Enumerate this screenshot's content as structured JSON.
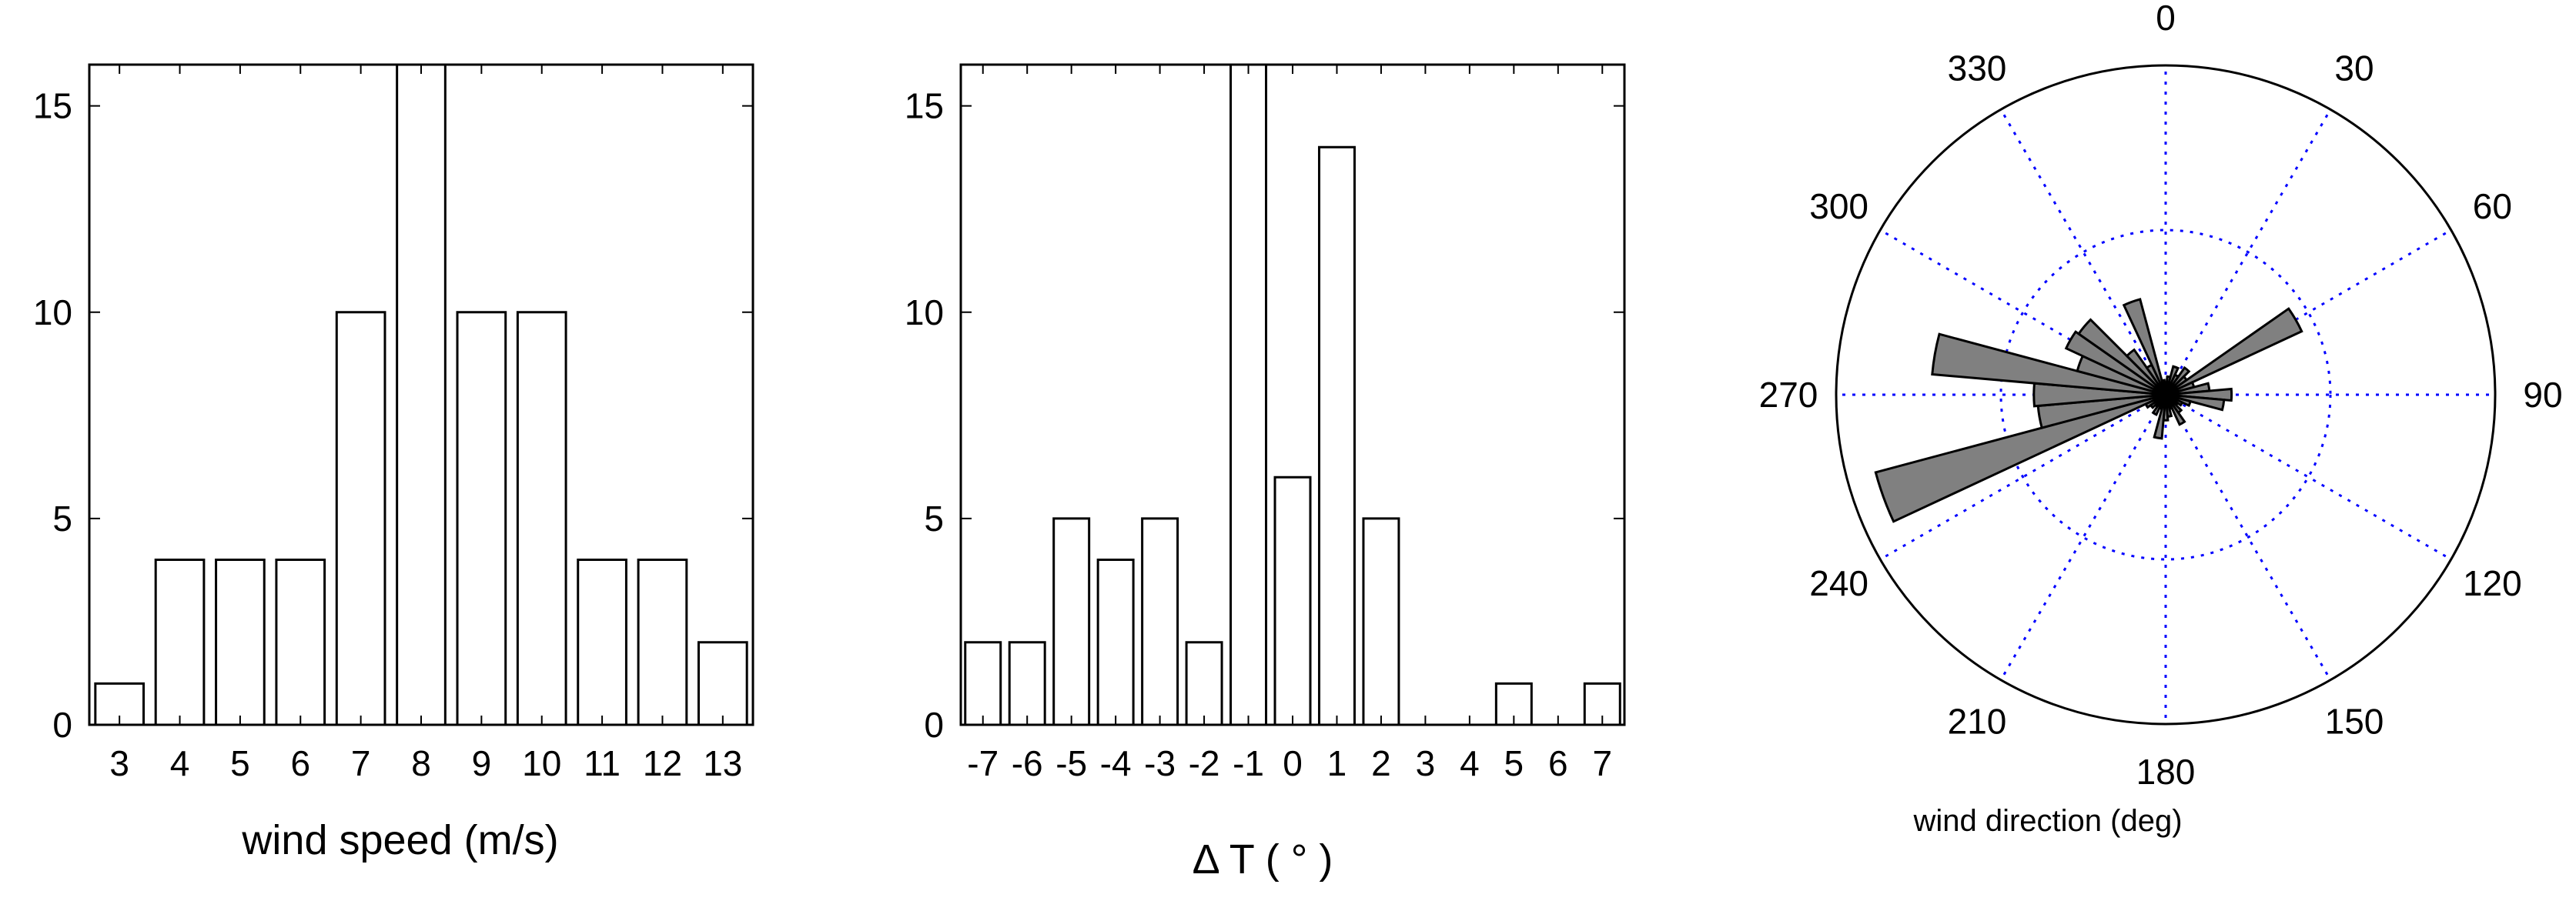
{
  "chart_data": [
    {
      "type": "bar",
      "categories": [
        "3",
        "4",
        "5",
        "6",
        "7",
        "8",
        "9",
        "10",
        "11",
        "12",
        "13"
      ],
      "values": [
        1,
        4,
        4,
        4,
        10,
        16,
        10,
        10,
        4,
        4,
        2
      ],
      "xlabel": "wind speed (m/s)",
      "ylabel": "",
      "ylim": [
        0,
        16
      ],
      "yticks": [
        0,
        5,
        10,
        15
      ],
      "grid": false
    },
    {
      "type": "bar",
      "categories": [
        "-7",
        "-6",
        "-5",
        "-4",
        "-3",
        "-2",
        "-1",
        "0",
        "1",
        "2",
        "3",
        "4",
        "5",
        "6",
        "7"
      ],
      "values": [
        2,
        2,
        5,
        4,
        5,
        2,
        16,
        6,
        14,
        5,
        0,
        0,
        1,
        0,
        1
      ],
      "xlabel": "Δ T ( ° )",
      "ylabel": "",
      "ylim": [
        0,
        16
      ],
      "yticks": [
        0,
        5,
        10,
        15
      ],
      "grid": false
    },
    {
      "type": "rose",
      "angle_labels": [
        "0",
        "30",
        "60",
        "90",
        "120",
        "150",
        "180",
        "210",
        "240",
        "270",
        "300",
        "330"
      ],
      "directions_deg": [
        0,
        10,
        20,
        30,
        40,
        50,
        60,
        70,
        80,
        90,
        100,
        110,
        120,
        130,
        140,
        150,
        160,
        170,
        180,
        190,
        200,
        210,
        220,
        230,
        240,
        250,
        260,
        270,
        280,
        290,
        300,
        310,
        320,
        330,
        340,
        350
      ],
      "values": [
        0.3,
        0.5,
        0.8,
        0.6,
        0.9,
        0.7,
        4.1,
        0.8,
        1.2,
        1.8,
        1.6,
        0.7,
        0.5,
        0.4,
        0.6,
        0.9,
        0.4,
        0.6,
        0.7,
        1.2,
        0.4,
        0.6,
        0.4,
        0.5,
        0.6,
        8.2,
        3.5,
        3.6,
        6.4,
        2.5,
        3.0,
        2.9,
        1.5,
        0.9,
        2.7,
        0.4
      ],
      "rmax": 9,
      "grid": true,
      "xlabel": "wind direction (deg)"
    }
  ],
  "colors": {
    "bar_fill": "#ffffff",
    "bar_edge": "#000000",
    "rose_fill": "#808080",
    "grid": "#0000ff"
  }
}
